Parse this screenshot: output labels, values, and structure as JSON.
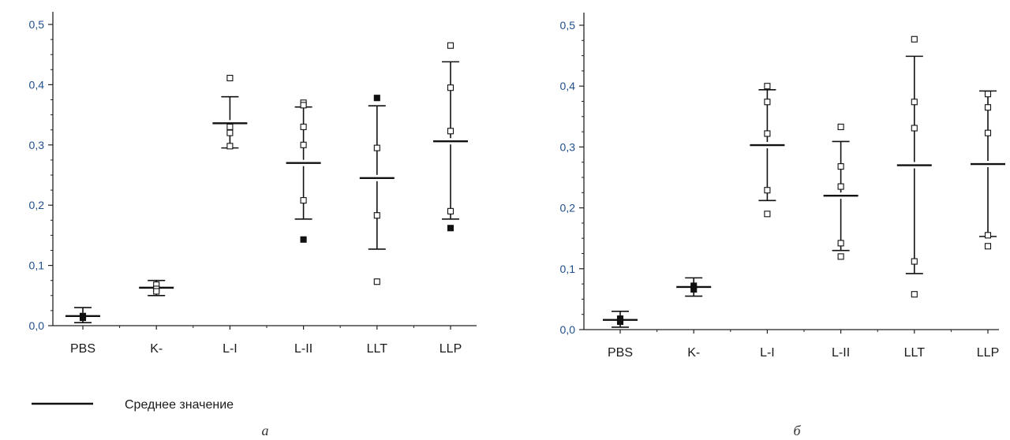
{
  "colors": {
    "tick_label": "#1f4e8c",
    "axis": "#222222",
    "marker": "#111111"
  },
  "legend": {
    "label": "Среднее значение"
  },
  "chart_data": [
    {
      "type": "scatter",
      "panel_label": "а",
      "categories": [
        "PBS",
        "K-",
        "L-I",
        "L-II",
        "LLT",
        "LLP"
      ],
      "y_ticks": [
        "0,0",
        "0,1",
        "0,2",
        "0,3",
        "0,4",
        "0,5"
      ],
      "ylim": [
        0,
        0.5
      ],
      "groups": [
        {
          "category": "PBS",
          "mean": 0.016,
          "upper": 0.03,
          "lower": 0.005,
          "points": [
            {
              "y": 0.016,
              "filled": true
            },
            {
              "y": 0.013,
              "filled": true
            }
          ]
        },
        {
          "category": "K-",
          "mean": 0.063,
          "upper": 0.075,
          "lower": 0.05,
          "points": [
            {
              "y": 0.068,
              "filled": false
            },
            {
              "y": 0.061,
              "filled": false
            },
            {
              "y": 0.057,
              "filled": false
            }
          ]
        },
        {
          "category": "L-I",
          "mean": 0.336,
          "upper": 0.38,
          "lower": 0.295,
          "points": [
            {
              "y": 0.411,
              "filled": false
            },
            {
              "y": 0.33,
              "filled": false
            },
            {
              "y": 0.32,
              "filled": false
            },
            {
              "y": 0.298,
              "filled": false
            }
          ]
        },
        {
          "category": "L-II",
          "mean": 0.27,
          "upper": 0.363,
          "lower": 0.177,
          "points": [
            {
              "y": 0.37,
              "filled": false
            },
            {
              "y": 0.366,
              "filled": false
            },
            {
              "y": 0.33,
              "filled": false
            },
            {
              "y": 0.3,
              "filled": false
            },
            {
              "y": 0.208,
              "filled": false
            },
            {
              "y": 0.143,
              "filled": true
            }
          ]
        },
        {
          "category": "LLT",
          "mean": 0.245,
          "upper": 0.365,
          "lower": 0.127,
          "points": [
            {
              "y": 0.378,
              "filled": true
            },
            {
              "y": 0.295,
              "filled": false
            },
            {
              "y": 0.183,
              "filled": false
            },
            {
              "y": 0.073,
              "filled": false
            }
          ]
        },
        {
          "category": "LLP",
          "mean": 0.306,
          "upper": 0.438,
          "lower": 0.177,
          "points": [
            {
              "y": 0.465,
              "filled": false
            },
            {
              "y": 0.395,
              "filled": false
            },
            {
              "y": 0.323,
              "filled": false
            },
            {
              "y": 0.19,
              "filled": false
            },
            {
              "y": 0.162,
              "filled": true
            }
          ]
        }
      ]
    },
    {
      "type": "scatter",
      "panel_label": "б",
      "categories": [
        "PBS",
        "K-",
        "L-I",
        "L-II",
        "LLT",
        "LLP"
      ],
      "y_ticks": [
        "0,0",
        "0,1",
        "0,2",
        "0,3",
        "0,4",
        "0,5"
      ],
      "ylim": [
        0,
        0.5
      ],
      "groups": [
        {
          "category": "PBS",
          "mean": 0.016,
          "upper": 0.03,
          "lower": 0.004,
          "points": [
            {
              "y": 0.018,
              "filled": true
            },
            {
              "y": 0.013,
              "filled": true
            }
          ]
        },
        {
          "category": "K-",
          "mean": 0.07,
          "upper": 0.085,
          "lower": 0.055,
          "points": [
            {
              "y": 0.072,
              "filled": true
            },
            {
              "y": 0.066,
              "filled": true
            }
          ]
        },
        {
          "category": "L-I",
          "mean": 0.303,
          "upper": 0.394,
          "lower": 0.212,
          "points": [
            {
              "y": 0.4,
              "filled": false
            },
            {
              "y": 0.374,
              "filled": false
            },
            {
              "y": 0.322,
              "filled": false
            },
            {
              "y": 0.229,
              "filled": false
            },
            {
              "y": 0.19,
              "filled": false
            }
          ]
        },
        {
          "category": "L-II",
          "mean": 0.22,
          "upper": 0.309,
          "lower": 0.13,
          "points": [
            {
              "y": 0.333,
              "filled": false
            },
            {
              "y": 0.268,
              "filled": false
            },
            {
              "y": 0.235,
              "filled": false
            },
            {
              "y": 0.142,
              "filled": false
            },
            {
              "y": 0.12,
              "filled": false
            }
          ]
        },
        {
          "category": "LLT",
          "mean": 0.27,
          "upper": 0.449,
          "lower": 0.092,
          "points": [
            {
              "y": 0.477,
              "filled": false
            },
            {
              "y": 0.374,
              "filled": false
            },
            {
              "y": 0.331,
              "filled": false
            },
            {
              "y": 0.112,
              "filled": false
            },
            {
              "y": 0.058,
              "filled": false
            }
          ]
        },
        {
          "category": "LLP",
          "mean": 0.272,
          "upper": 0.392,
          "lower": 0.153,
          "points": [
            {
              "y": 0.387,
              "filled": false
            },
            {
              "y": 0.365,
              "filled": false
            },
            {
              "y": 0.323,
              "filled": false
            },
            {
              "y": 0.155,
              "filled": false
            },
            {
              "y": 0.137,
              "filled": false
            }
          ]
        }
      ]
    }
  ]
}
